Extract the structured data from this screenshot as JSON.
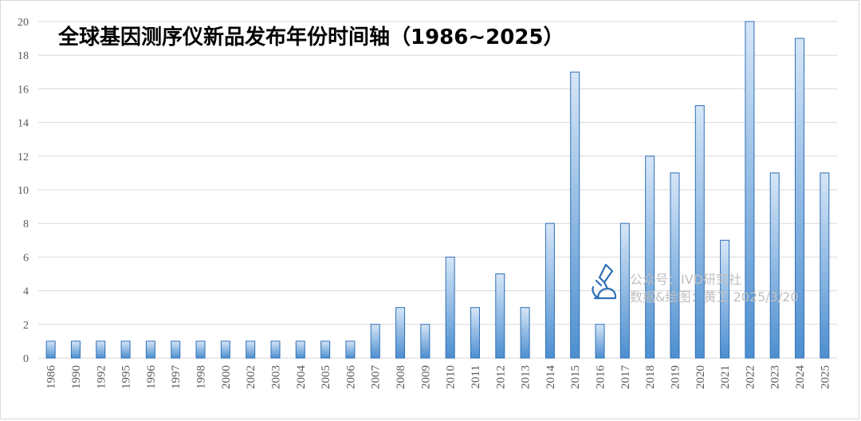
{
  "chart_data": {
    "type": "bar",
    "title": "全球基因测序仪新品发布年份时间轴（1986~2025）",
    "xlabel": "",
    "ylabel": "",
    "ylim": [
      0,
      20
    ],
    "yticks": [
      0,
      2,
      4,
      6,
      8,
      10,
      12,
      14,
      16,
      18,
      20
    ],
    "grid": true,
    "legend": "none",
    "categories": [
      "1986",
      "1990",
      "1992",
      "1995",
      "1996",
      "1997",
      "1998",
      "2000",
      "2002",
      "2003",
      "2004",
      "2005",
      "2006",
      "2007",
      "2008",
      "2009",
      "2010",
      "2011",
      "2012",
      "2013",
      "2014",
      "2015",
      "2016",
      "2017",
      "2018",
      "2019",
      "2020",
      "2021",
      "2022",
      "2023",
      "2024",
      "2025"
    ],
    "values": [
      1,
      1,
      1,
      1,
      1,
      1,
      1,
      1,
      1,
      1,
      1,
      1,
      1,
      2,
      3,
      2,
      6,
      3,
      5,
      3,
      8,
      17,
      2,
      8,
      12,
      11,
      15,
      7,
      20,
      11,
      19,
      11
    ]
  },
  "watermark": {
    "line1": "公众号：IVD研究社",
    "line2": "数据&绘图：黄工 2025/3/20"
  },
  "colors": {
    "bar_top": "#d6e6f7",
    "bar_bottom": "#4d8fd0",
    "bar_stroke": "#2f6fb5",
    "grid": "#d9d9d9",
    "text": "#595959",
    "title": "#000000",
    "watermark": "#bfbfbf",
    "watermark_icon": "#2f6fb5"
  }
}
